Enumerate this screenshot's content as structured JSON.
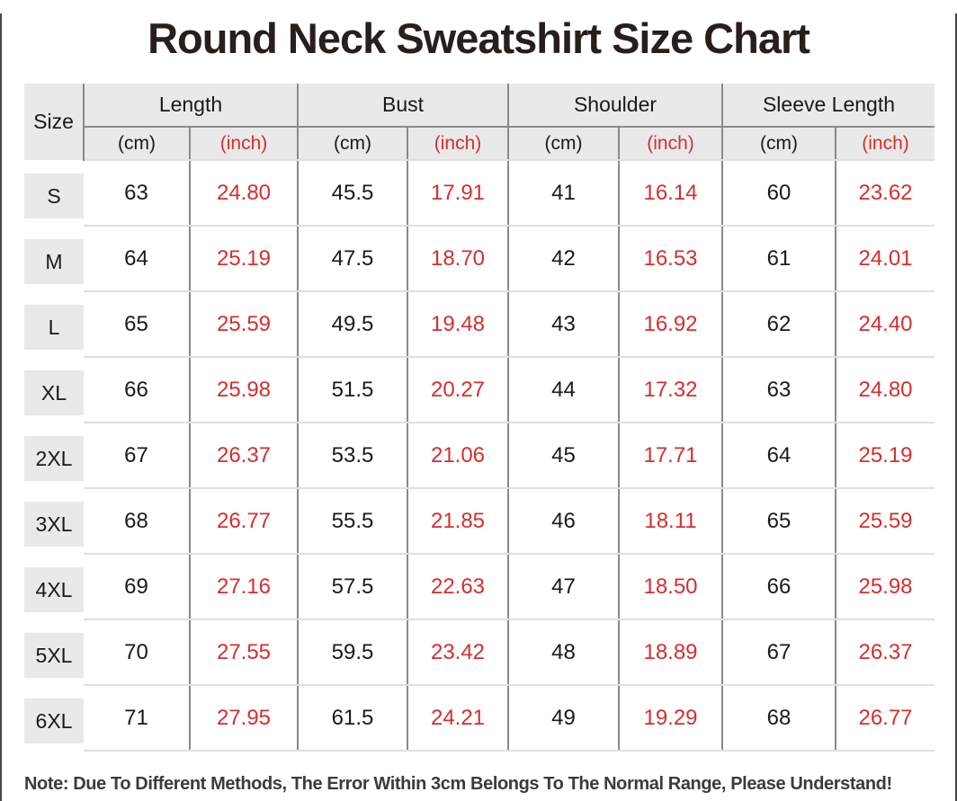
{
  "title": "Round Neck Sweatshirt Size Chart",
  "table": {
    "size_header": "Size",
    "groups": [
      {
        "label": "Length"
      },
      {
        "label": "Bust"
      },
      {
        "label": "Shoulder"
      },
      {
        "label": "Sleeve Length"
      }
    ],
    "unit_cm": "(cm)",
    "unit_inch": "(inch)",
    "rows": [
      {
        "size": "S",
        "length_cm": "63",
        "length_in": "24.80",
        "bust_cm": "45.5",
        "bust_in": "17.91",
        "shoulder_cm": "41",
        "shoulder_in": "16.14",
        "sleeve_cm": "60",
        "sleeve_in": "23.62"
      },
      {
        "size": "M",
        "length_cm": "64",
        "length_in": "25.19",
        "bust_cm": "47.5",
        "bust_in": "18.70",
        "shoulder_cm": "42",
        "shoulder_in": "16.53",
        "sleeve_cm": "61",
        "sleeve_in": "24.01"
      },
      {
        "size": "L",
        "length_cm": "65",
        "length_in": "25.59",
        "bust_cm": "49.5",
        "bust_in": "19.48",
        "shoulder_cm": "43",
        "shoulder_in": "16.92",
        "sleeve_cm": "62",
        "sleeve_in": "24.40"
      },
      {
        "size": "XL",
        "length_cm": "66",
        "length_in": "25.98",
        "bust_cm": "51.5",
        "bust_in": "20.27",
        "shoulder_cm": "44",
        "shoulder_in": "17.32",
        "sleeve_cm": "63",
        "sleeve_in": "24.80"
      },
      {
        "size": "2XL",
        "length_cm": "67",
        "length_in": "26.37",
        "bust_cm": "53.5",
        "bust_in": "21.06",
        "shoulder_cm": "45",
        "shoulder_in": "17.71",
        "sleeve_cm": "64",
        "sleeve_in": "25.19"
      },
      {
        "size": "3XL",
        "length_cm": "68",
        "length_in": "26.77",
        "bust_cm": "55.5",
        "bust_in": "21.85",
        "shoulder_cm": "46",
        "shoulder_in": "18.11",
        "sleeve_cm": "65",
        "sleeve_in": "25.59"
      },
      {
        "size": "4XL",
        "length_cm": "69",
        "length_in": "27.16",
        "bust_cm": "57.5",
        "bust_in": "22.63",
        "shoulder_cm": "47",
        "shoulder_in": "18.50",
        "sleeve_cm": "66",
        "sleeve_in": "25.98"
      },
      {
        "size": "5XL",
        "length_cm": "70",
        "length_in": "27.55",
        "bust_cm": "59.5",
        "bust_in": "23.42",
        "shoulder_cm": "48",
        "shoulder_in": "18.89",
        "sleeve_cm": "67",
        "sleeve_in": "26.37"
      },
      {
        "size": "6XL",
        "length_cm": "71",
        "length_in": "27.95",
        "bust_cm": "61.5",
        "bust_in": "24.21",
        "shoulder_cm": "49",
        "shoulder_in": "19.29",
        "sleeve_cm": "68",
        "sleeve_in": "26.77"
      }
    ]
  },
  "note": "Note: Due To Different Methods, The Error Within 3cm Belongs To The Normal Range, Please Understand!",
  "colors": {
    "accent_red": "#d32f2f",
    "header_bg": "#e9e9e9",
    "title_color": "#281e1c",
    "text_dark": "#1a1a1a",
    "line_dark": "#8a8a8a",
    "line_light": "#dfdfdf",
    "note_color": "#3b3b3b"
  },
  "chart_data": {
    "type": "table",
    "title": "Round Neck Sweatshirt Size Chart",
    "column_groups": [
      "Size",
      "Length",
      "Bust",
      "Shoulder",
      "Sleeve Length"
    ],
    "columns": [
      "Size",
      "Length (cm)",
      "Length (inch)",
      "Bust (cm)",
      "Bust (inch)",
      "Shoulder (cm)",
      "Shoulder (inch)",
      "Sleeve Length (cm)",
      "Sleeve Length (inch)"
    ],
    "rows": [
      [
        "S",
        "63",
        "24.80",
        "45.5",
        "17.91",
        "41",
        "16.14",
        "60",
        "23.62"
      ],
      [
        "M",
        "64",
        "25.19",
        "47.5",
        "18.70",
        "42",
        "16.53",
        "61",
        "24.01"
      ],
      [
        "L",
        "65",
        "25.59",
        "49.5",
        "19.48",
        "43",
        "16.92",
        "62",
        "24.40"
      ],
      [
        "XL",
        "66",
        "25.98",
        "51.5",
        "20.27",
        "44",
        "17.32",
        "63",
        "24.80"
      ],
      [
        "2XL",
        "67",
        "26.37",
        "53.5",
        "21.06",
        "45",
        "17.71",
        "64",
        "25.19"
      ],
      [
        "3XL",
        "68",
        "26.77",
        "55.5",
        "21.85",
        "46",
        "18.11",
        "65",
        "25.59"
      ],
      [
        "4XL",
        "69",
        "27.16",
        "57.5",
        "22.63",
        "47",
        "18.50",
        "66",
        "25.98"
      ],
      [
        "5XL",
        "70",
        "27.55",
        "59.5",
        "23.42",
        "48",
        "18.89",
        "67",
        "26.37"
      ],
      [
        "6XL",
        "71",
        "27.95",
        "61.5",
        "24.21",
        "49",
        "19.29",
        "68",
        "26.77"
      ]
    ],
    "note": "Note: Due To Different Methods, The Error Within 3cm Belongs To The Normal Range, Please Understand!"
  }
}
